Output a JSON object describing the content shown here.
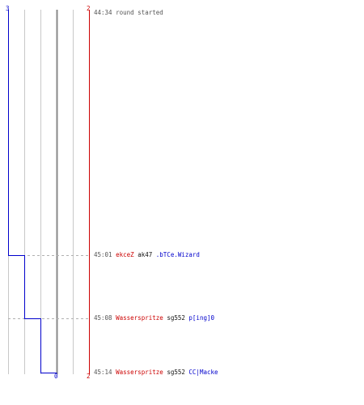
{
  "colors": {
    "team1": "#cc0000",
    "team2": "#0000cc",
    "text_gray": "#555555",
    "grid": "#c8c8c8",
    "center_line": "#888888"
  },
  "axis": {
    "top_left_label": "3",
    "top_right_label": "2",
    "bottom_center_label": "0",
    "bottom_right_label": "2"
  },
  "events": [
    {
      "time": "44:34",
      "text": "round started"
    },
    {
      "time": "45:01",
      "killer": "ekceZ",
      "weapon": "ak47",
      "victim": ".bTCe.Wizard"
    },
    {
      "time": "45:08",
      "killer": "Wasserspritze",
      "weapon": "sg552",
      "victim": "p[ing]0"
    },
    {
      "time": "45:14",
      "killer": "Wasserspritze",
      "weapon": "sg552",
      "victim": "CC|Macke"
    }
  ]
}
